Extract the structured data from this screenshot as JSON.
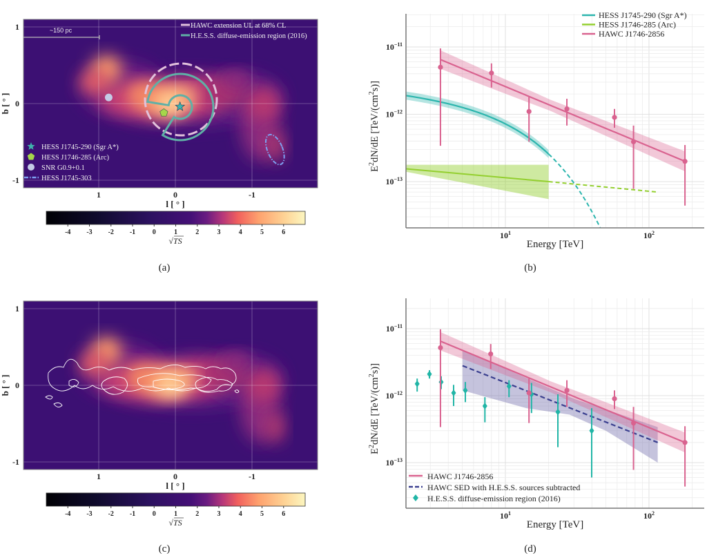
{
  "figure": {
    "panel_labels": [
      "(a)",
      "(b)",
      "(c)",
      "(d)"
    ]
  },
  "chart_data": [
    {
      "panel": "(a)",
      "type": "heatmap",
      "xlabel": "l [ ° ]",
      "ylabel": "b [ ° ]",
      "x_ticks": [
        "1",
        "0",
        "-1"
      ],
      "x_tick_values": [
        1,
        0,
        -1
      ],
      "y_ticks": [
        "1",
        "0",
        "-1"
      ],
      "y_tick_values": [
        1,
        0,
        -1
      ],
      "scale_bar": "~150 pc",
      "colorbar": {
        "label": "√TS",
        "ticks": [
          "-4",
          "-3",
          "-2",
          "-1",
          "0",
          "1",
          "2",
          "3",
          "4",
          "5",
          "6"
        ],
        "range": [
          -5,
          7
        ]
      },
      "legend_top": [
        {
          "label": "HAWC extension UL at 68% CL",
          "color": "#e2c2dc",
          "style": "dashed"
        },
        {
          "label": "H.E.S.S. diffuse-emission region (2016)",
          "color": "#5fb0a6",
          "style": "solid"
        }
      ],
      "legend_bottom": [
        {
          "label": "HESS J1745-290 (Sgr A*)",
          "marker": "star",
          "color": "#3fb3ad",
          "l": -0.06,
          "b": -0.04
        },
        {
          "label": "HESS J1746-285 (Arc)",
          "marker": "pentagon",
          "color": "#a6d64a",
          "l": 0.15,
          "b": -0.12
        },
        {
          "label": "SNR G0.9+0.1",
          "marker": "circle",
          "color": "#c4cbe6",
          "l": 0.87,
          "b": 0.08
        },
        {
          "label": "HESS J1745-303",
          "marker": "dash-dot-ellipse",
          "color": "#7d9ff0",
          "l": -1.3,
          "b": -0.6
        }
      ]
    },
    {
      "panel": "(b)",
      "type": "line",
      "xlabel": "Energy [TeV]",
      "ylabel": [
        "E",
        "2",
        "dN/dE [TeV/(cm",
        "2",
        "s)]"
      ],
      "x_scale": "log",
      "y_scale": "log",
      "xlim": [
        2.03,
        242
      ],
      "ylim": [
        2e-14,
        3.1e-11
      ],
      "x_ticks": [
        {
          "base": "10",
          "exp": "1",
          "value": 10
        },
        {
          "base": "10",
          "exp": "2",
          "value": 100
        }
      ],
      "y_ticks": [
        {
          "base": "10",
          "exp": "−11",
          "value": 1e-11
        },
        {
          "base": "10",
          "exp": "−12",
          "value": 1e-12
        },
        {
          "base": "10",
          "exp": "−13",
          "value": 1e-13
        }
      ],
      "grid": true,
      "legend_position": "top-right",
      "series": [
        {
          "name": "HESS J1745-290 (Sgr A*)",
          "color": "#2bb5ad",
          "model": "power-law with exponential cutoff",
          "norm_at_1TeV": 2.53e-12,
          "index": 2.14,
          "cutoff_TeV": 10.7,
          "solid_range": [
            2.03,
            20
          ],
          "dashed_range": [
            20,
            48
          ],
          "band_fraction": 0.15
        },
        {
          "name": "HESS J1746-285 (Arc)",
          "color": "#93cf2e",
          "model": "power law",
          "points": [
            [
              2.03,
              1.55e-13
            ],
            [
              20,
              1e-13
            ],
            [
              114,
              7e-14
            ]
          ],
          "solid_range": [
            2.03,
            20
          ],
          "band_upper": [
            [
              2.03,
              1.78e-13
            ],
            [
              20,
              1.78e-13
            ]
          ],
          "band_lower": [
            [
              2.03,
              1.4e-13
            ],
            [
              20,
              5.5e-14
            ]
          ]
        },
        {
          "name": "HAWC J1746-2856",
          "color": "#d9628f",
          "model": "power law",
          "line": [
            [
              3.53,
              6.5e-12
            ],
            [
              178,
              2e-13
            ]
          ],
          "band_fraction": 0.3,
          "points": [
            {
              "E": 3.53,
              "F": 5e-12,
              "lo": 3.4e-13,
              "hi": 9.5e-12
            },
            {
              "E": 8.0,
              "F": 4.1e-12,
              "lo": 2.5e-12,
              "hi": 5.7e-12
            },
            {
              "E": 14.6,
              "F": 1.1e-12,
              "lo": 3.9e-13,
              "hi": 1.8e-12
            },
            {
              "E": 26.8,
              "F": 1.2e-12,
              "lo": 6.8e-13,
              "hi": 1.7e-12
            },
            {
              "E": 57.5,
              "F": 9e-13,
              "lo": 6.3e-13,
              "hi": 1.2e-12
            },
            {
              "E": 78,
              "F": 3.9e-13,
              "lo": 7.8e-14,
              "hi": 6.8e-13
            },
            {
              "E": 178,
              "F": 2e-13,
              "lo": 4.4e-14,
              "hi": 3.5e-13
            }
          ]
        }
      ]
    },
    {
      "panel": "(c)",
      "type": "heatmap",
      "xlabel": "l [ ° ]",
      "ylabel": "b [ ° ]",
      "x_ticks": [
        "1",
        "0",
        "-1"
      ],
      "y_ticks": [
        "1",
        "0",
        "-1"
      ],
      "colorbar": {
        "label": "√TS",
        "ticks": [
          "-4",
          "-3",
          "-2",
          "-1",
          "0",
          "1",
          "2",
          "3",
          "4",
          "5",
          "6"
        ],
        "range": [
          -5,
          7
        ]
      },
      "contours": "white"
    },
    {
      "panel": "(d)",
      "type": "line",
      "xlabel": "Energy [TeV]",
      "ylabel": [
        "E",
        "2",
        "dN/dE [TeV/(cm",
        "2",
        "s)]"
      ],
      "x_scale": "log",
      "y_scale": "log",
      "xlim": [
        2.03,
        242
      ],
      "ylim": [
        2.1e-14,
        3.5e-11
      ],
      "x_ticks": [
        {
          "base": "10",
          "exp": "1",
          "value": 10
        },
        {
          "base": "10",
          "exp": "2",
          "value": 100
        }
      ],
      "y_ticks": [
        {
          "base": "10",
          "exp": "−11",
          "value": 1e-11
        },
        {
          "base": "10",
          "exp": "−12",
          "value": 1e-12
        },
        {
          "base": "10",
          "exp": "−13",
          "value": 1e-13
        }
      ],
      "grid": true,
      "legend_position": "bottom-left",
      "series": [
        {
          "name": "HAWC J1746-2856",
          "color": "#d9628f",
          "style": "solid",
          "line": [
            [
              3.53,
              6.5e-12
            ],
            [
              178,
              2e-13
            ]
          ],
          "band_fraction": 0.3,
          "points": [
            {
              "E": 3.53,
              "F": 5.2e-12,
              "lo": 3.4e-13,
              "hi": 9.8e-12
            },
            {
              "E": 7.9,
              "F": 4.2e-12,
              "lo": 2.5e-12,
              "hi": 5.9e-12
            },
            {
              "E": 14.6,
              "F": 1.1e-12,
              "lo": 3.9e-13,
              "hi": 1.8e-12
            },
            {
              "E": 26.8,
              "F": 1.2e-12,
              "lo": 6.8e-13,
              "hi": 1.7e-12
            },
            {
              "E": 57.5,
              "F": 9e-13,
              "lo": 6.3e-13,
              "hi": 1.2e-12
            },
            {
              "E": 78,
              "F": 3.9e-13,
              "lo": 7.8e-14,
              "hi": 6.8e-13
            },
            {
              "E": 178,
              "F": 2e-13,
              "lo": 4.4e-14,
              "hi": 3.5e-13
            }
          ]
        },
        {
          "name": "HAWC SED with H.E.S.S. sources subtracted",
          "color": "#3a3f8f",
          "style": "dashed",
          "line": [
            [
              5.03,
              2.8e-12
            ],
            [
              115,
              2e-13
            ]
          ],
          "band_upper": [
            [
              5.03,
              4.8e-12
            ],
            [
              30,
              9e-13
            ],
            [
              115,
              3.4e-13
            ]
          ],
          "band_lower": [
            [
              5.03,
              1.2e-12
            ],
            [
              14,
              6.5e-13
            ],
            [
              28,
              5.2e-13
            ],
            [
              50,
              3e-13
            ],
            [
              115,
              1e-13
            ]
          ]
        },
        {
          "name": "H.E.S.S. diffuse-emission region (2016)",
          "color": "#20b5a6",
          "style": "diamond",
          "points": [
            {
              "E": 2.43,
              "F": 1.5e-12,
              "lo": 1.15e-12,
              "hi": 1.8e-12
            },
            {
              "E": 2.96,
              "F": 2.1e-12,
              "lo": 1.8e-12,
              "hi": 2.4e-12
            },
            {
              "E": 3.57,
              "F": 1.6e-12,
              "lo": 1.25e-12,
              "hi": 1.95e-12
            },
            {
              "E": 4.36,
              "F": 1.1e-12,
              "lo": 7e-13,
              "hi": 1.45e-12
            },
            {
              "E": 5.26,
              "F": 1.2e-12,
              "lo": 8e-13,
              "hi": 1.6e-12
            },
            {
              "E": 7.2,
              "F": 7e-13,
              "lo": 4e-13,
              "hi": 9.5e-13
            },
            {
              "E": 10.6,
              "F": 1.38e-12,
              "lo": 9.5e-13,
              "hi": 1.7e-12
            },
            {
              "E": 15.2,
              "F": 1.05e-12,
              "lo": 5.5e-13,
              "hi": 1.55e-12
            },
            {
              "E": 23.2,
              "F": 5.7e-13,
              "lo": 1.7e-13,
              "hi": 1.05e-12
            },
            {
              "E": 39.9,
              "F": 3e-13,
              "lo": 6e-14,
              "hi": 6.5e-13
            }
          ]
        }
      ]
    }
  ]
}
